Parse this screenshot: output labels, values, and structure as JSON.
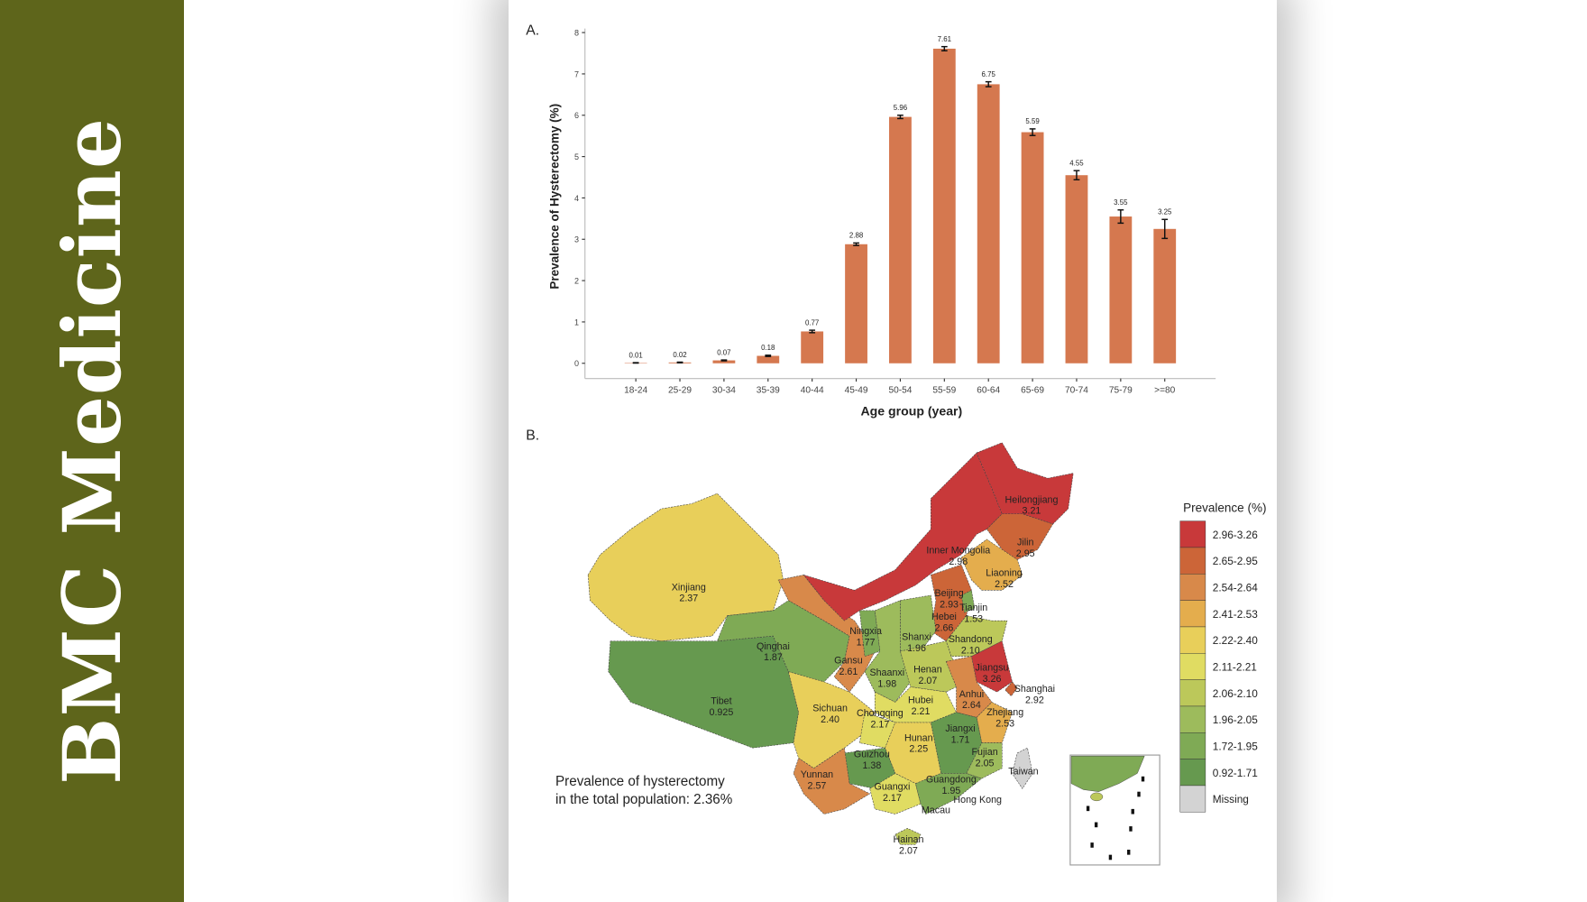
{
  "sidebar": {
    "brand": "BMC Medicine"
  },
  "panel_a": {
    "label": "A."
  },
  "panel_b": {
    "label": "B."
  },
  "chart_data": {
    "type": "bar",
    "title": "",
    "xlabel": "Age group (year)",
    "ylabel": "Prevalence of Hysterectomy (%)",
    "ylim": [
      0,
      8
    ],
    "yticks": [
      "0",
      "1",
      "2",
      "3",
      "4",
      "5",
      "6",
      "7",
      "8"
    ],
    "grid": false,
    "bar_color": "#d5784f",
    "categories": [
      "18-24",
      "25-29",
      "30-34",
      "35-39",
      "40-44",
      "45-49",
      "50-54",
      "55-59",
      "60-64",
      "65-69",
      "70-74",
      "75-79",
      ">=80"
    ],
    "values": [
      0.01,
      0.02,
      0.07,
      0.18,
      0.77,
      2.88,
      5.96,
      7.61,
      6.75,
      5.59,
      4.55,
      3.55,
      3.25
    ],
    "value_labels": [
      "0.01",
      "0.02",
      "0.07",
      "0.18",
      "0.77",
      "2.88",
      "5.96",
      "7.61",
      "6.75",
      "5.59",
      "4.55",
      "3.55",
      "3.25"
    ],
    "error": [
      0.005,
      0.008,
      0.01,
      0.015,
      0.03,
      0.03,
      0.04,
      0.05,
      0.06,
      0.08,
      0.11,
      0.16,
      0.23
    ]
  },
  "map": {
    "note_line1": "Prevalence of hysterectomy",
    "note_line2": "in the total population: 2.36%",
    "legend_title": "Prevalence (%)",
    "legend": [
      {
        "label": "2.96-3.26",
        "color": "#c8393a"
      },
      {
        "label": "2.65-2.95",
        "color": "#cc6538"
      },
      {
        "label": "2.54-2.64",
        "color": "#d8894a"
      },
      {
        "label": "2.41-2.53",
        "color": "#e4ad4d"
      },
      {
        "label": "2.22-2.40",
        "color": "#e8cf5a"
      },
      {
        "label": "2.11-2.21",
        "color": "#e0dc62"
      },
      {
        "label": "2.06-2.10",
        "color": "#bcc85a"
      },
      {
        "label": "1.96-2.05",
        "color": "#9dbb5c"
      },
      {
        "label": "1.72-1.95",
        "color": "#7faa55"
      },
      {
        "label": "0.92-1.71",
        "color": "#66994f"
      },
      {
        "label": "Missing",
        "color": "#d3d3d3"
      }
    ],
    "provinces": [
      {
        "name": "Heilongjiang",
        "value": "3.21"
      },
      {
        "name": "Jilin",
        "value": "2.95"
      },
      {
        "name": "Inner Mongolia",
        "value": "2.98"
      },
      {
        "name": "Liaoning",
        "value": "2.52"
      },
      {
        "name": "Xinjiang",
        "value": "2.37"
      },
      {
        "name": "Beijing",
        "value": "2.93"
      },
      {
        "name": "Tianjin",
        "value": "1.53"
      },
      {
        "name": "Hebei",
        "value": "2.66"
      },
      {
        "name": "Ningxia",
        "value": "1.77"
      },
      {
        "name": "Shanxi",
        "value": "1.96"
      },
      {
        "name": "Shandong",
        "value": "2.10"
      },
      {
        "name": "Qinghai",
        "value": "1.87"
      },
      {
        "name": "Gansu",
        "value": "2.61"
      },
      {
        "name": "Shaanxi",
        "value": "1.98"
      },
      {
        "name": "Henan",
        "value": "2.07"
      },
      {
        "name": "Jiangsu",
        "value": "3.26"
      },
      {
        "name": "Shanghai",
        "value": "2.92"
      },
      {
        "name": "Anhui",
        "value": "2.64"
      },
      {
        "name": "Tibet",
        "value": "0.925"
      },
      {
        "name": "Sichuan",
        "value": "2.40"
      },
      {
        "name": "Chongqing",
        "value": "2.17"
      },
      {
        "name": "Hubei",
        "value": "2.21"
      },
      {
        "name": "Zhejiang",
        "value": "2.53"
      },
      {
        "name": "Jiangxi",
        "value": "1.71"
      },
      {
        "name": "Hunan",
        "value": "2.25"
      },
      {
        "name": "Guizhou",
        "value": "1.38"
      },
      {
        "name": "Fujian",
        "value": "2.05"
      },
      {
        "name": "Yunnan",
        "value": "2.57"
      },
      {
        "name": "Guangxi",
        "value": "2.17"
      },
      {
        "name": "Guangdong",
        "value": "1.95"
      },
      {
        "name": "Hainan",
        "value": "2.07"
      },
      {
        "name": "Taiwan",
        "value": ""
      },
      {
        "name": "Hong Kong",
        "value": ""
      },
      {
        "name": "Macau",
        "value": ""
      }
    ]
  }
}
